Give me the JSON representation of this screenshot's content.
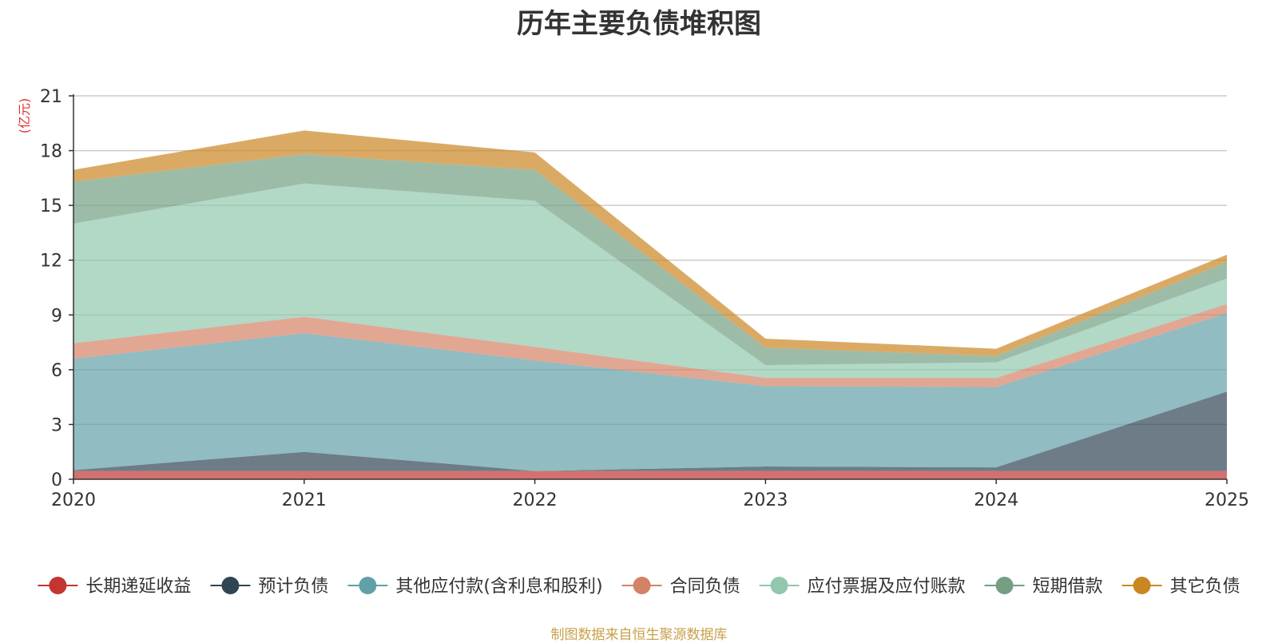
{
  "chart_data": {
    "type": "area",
    "stacked": true,
    "title": "历年主要负债堆积图",
    "ylabel": "(亿元)",
    "xlabel": "",
    "x": [
      "2020",
      "2021",
      "2022",
      "2023",
      "2024",
      "2025"
    ],
    "ylim": [
      0,
      21
    ],
    "yticks": [
      "0",
      "3",
      "6",
      "9",
      "12",
      "15",
      "18",
      "21"
    ],
    "grid": true,
    "legend_position": "bottom",
    "series": [
      {
        "name": "长期递延收益",
        "color": "#c23531",
        "values": [
          0.45,
          0.45,
          0.45,
          0.45,
          0.45,
          0.45
        ]
      },
      {
        "name": "预计负债",
        "color": "#2f4554",
        "values": [
          0.05,
          1.05,
          0.0,
          0.25,
          0.2,
          4.35
        ]
      },
      {
        "name": "其他应付款(含利息和股利)",
        "color": "#61a0a8",
        "values": [
          6.1,
          6.5,
          6.05,
          4.4,
          4.4,
          4.3
        ]
      },
      {
        "name": "合同负债",
        "color": "#d48265",
        "values": [
          0.85,
          0.9,
          0.75,
          0.45,
          0.5,
          0.5
        ]
      },
      {
        "name": "应付票据及应付账款",
        "color": "#91c7ae",
        "values": [
          6.55,
          7.3,
          8.0,
          0.7,
          0.85,
          1.4
        ]
      },
      {
        "name": "短期借款",
        "color": "#749f83",
        "values": [
          2.3,
          1.6,
          1.7,
          0.95,
          0.35,
          0.9
        ]
      },
      {
        "name": "其它负债",
        "color": "#ca8622",
        "values": [
          0.65,
          1.3,
          0.95,
          0.5,
          0.4,
          0.4
        ]
      }
    ]
  },
  "source_note": "制图数据来自恒生聚源数据库",
  "colors": {
    "source_note": "#c8a04a",
    "unit_label": "#e0332d",
    "grid": "#cccccc",
    "axis": "#333333"
  }
}
